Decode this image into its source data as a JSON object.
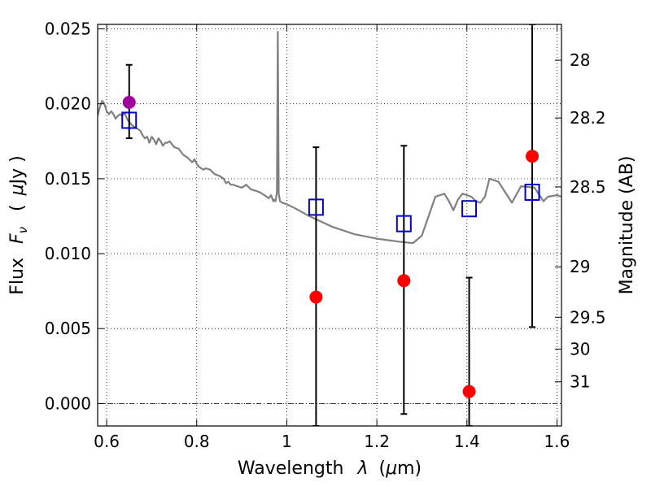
{
  "chart_data": {
    "type": "scatter",
    "xlabel_text": "Wavelength",
    "xlabel_symbol": "λ",
    "xlabel_unit_open": "(",
    "xlabel_unit_mu": "μ",
    "xlabel_unit_rest": "m)",
    "ylabel_text": "Flux",
    "ylabel_symbol": "F",
    "ylabel_sub": "ν",
    "ylabel_unit_open": "(",
    "ylabel_unit_mu": "μ",
    "ylabel_unit_rest": "Jy )",
    "y2label": "Magnitude (AB)",
    "xlim": [
      0.58,
      1.61
    ],
    "ylim": [
      -0.0015,
      0.0253
    ],
    "grid": true,
    "x_ticks": [
      {
        "v": 0.6,
        "label": "0.6"
      },
      {
        "v": 0.8,
        "label": "0.8"
      },
      {
        "v": 1.0,
        "label": "1"
      },
      {
        "v": 1.2,
        "label": "1.2"
      },
      {
        "v": 1.4,
        "label": "1.4"
      },
      {
        "v": 1.6,
        "label": "1.6"
      }
    ],
    "y_ticks": [
      {
        "v": 0.0,
        "label": "0.000"
      },
      {
        "v": 0.005,
        "label": "0.005"
      },
      {
        "v": 0.01,
        "label": "0.010"
      },
      {
        "v": 0.015,
        "label": "0.015"
      },
      {
        "v": 0.02,
        "label": "0.020"
      },
      {
        "v": 0.025,
        "label": "0.025"
      }
    ],
    "mag_ticks": [
      {
        "mag": 28,
        "label": "28"
      },
      {
        "mag": 28.2,
        "label": "28.2"
      },
      {
        "mag": 28.5,
        "label": "28.5"
      },
      {
        "mag": 29,
        "label": "29"
      },
      {
        "mag": 29.5,
        "label": "29.5"
      },
      {
        "mag": 30,
        "label": "30"
      },
      {
        "mag": 31,
        "label": "31"
      }
    ],
    "zero_line_y": 0.0,
    "model_spectrum": {
      "color": "#808080",
      "x": [
        0.58,
        0.585,
        0.59,
        0.595,
        0.6,
        0.605,
        0.61,
        0.615,
        0.62,
        0.625,
        0.63,
        0.635,
        0.64,
        0.645,
        0.65,
        0.655,
        0.66,
        0.665,
        0.67,
        0.675,
        0.68,
        0.685,
        0.69,
        0.695,
        0.7,
        0.705,
        0.71,
        0.715,
        0.72,
        0.725,
        0.73,
        0.735,
        0.74,
        0.75,
        0.76,
        0.77,
        0.78,
        0.79,
        0.795,
        0.8,
        0.805,
        0.81,
        0.815,
        0.82,
        0.83,
        0.84,
        0.85,
        0.86,
        0.865,
        0.87,
        0.875,
        0.88,
        0.89,
        0.9,
        0.91,
        0.92,
        0.93,
        0.94,
        0.95,
        0.96,
        0.965,
        0.97,
        0.972,
        0.975,
        0.978,
        0.98,
        0.982,
        0.985,
        0.99,
        1.0,
        1.02,
        1.05,
        1.1,
        1.15,
        1.2,
        1.25,
        1.28,
        1.3,
        1.33,
        1.35,
        1.36,
        1.37,
        1.38,
        1.39,
        1.4,
        1.41,
        1.42,
        1.43,
        1.44,
        1.45,
        1.47,
        1.5,
        1.52,
        1.55,
        1.57,
        1.58,
        1.6,
        1.61
      ],
      "y": [
        0.0192,
        0.0198,
        0.0202,
        0.02,
        0.0195,
        0.0193,
        0.0195,
        0.0193,
        0.019,
        0.0192,
        0.0193,
        0.0192,
        0.0194,
        0.019,
        0.0188,
        0.0186,
        0.0185,
        0.0184,
        0.0183,
        0.0182,
        0.0179,
        0.0177,
        0.0178,
        0.0174,
        0.0178,
        0.0176,
        0.0173,
        0.0177,
        0.0175,
        0.0172,
        0.0174,
        0.0174,
        0.0175,
        0.0171,
        0.017,
        0.0166,
        0.0164,
        0.0161,
        0.0163,
        0.016,
        0.0158,
        0.0157,
        0.0156,
        0.0157,
        0.0156,
        0.0153,
        0.0152,
        0.015,
        0.0147,
        0.0148,
        0.0146,
        0.0146,
        0.0145,
        0.0144,
        0.0146,
        0.0143,
        0.0142,
        0.0141,
        0.0139,
        0.0137,
        0.0139,
        0.0135,
        0.0136,
        0.0135,
        0.0141,
        0.0248,
        0.014,
        0.0135,
        0.0134,
        0.0133,
        0.013,
        0.0125,
        0.0118,
        0.0113,
        0.011,
        0.0108,
        0.0107,
        0.0112,
        0.0138,
        0.014,
        0.0135,
        0.0129,
        0.0136,
        0.014,
        0.0139,
        0.0138,
        0.0135,
        0.0134,
        0.0138,
        0.015,
        0.0148,
        0.0134,
        0.0145,
        0.0144,
        0.0135,
        0.0138,
        0.0139,
        0.0138
      ]
    },
    "model_bands": {
      "color": "#0000cc",
      "x": [
        0.65,
        1.065,
        1.26,
        1.405,
        1.545
      ],
      "y": [
        0.0189,
        0.0131,
        0.012,
        0.013,
        0.0141
      ]
    },
    "observed": {
      "color": "#ff0000",
      "x": [
        0.65,
        1.065,
        1.26,
        1.405,
        1.545
      ],
      "y": [
        0.0201,
        0.0071,
        0.0082,
        0.0008,
        0.0165
      ],
      "yerr_low": [
        0.0177,
        -0.0015,
        -0.0007,
        -0.0015,
        0.0051
      ],
      "yerr_high": [
        0.0226,
        0.0171,
        0.0172,
        0.0084,
        0.0253
      ],
      "point_colors": [
        "#a000a0",
        "#ff0000",
        "#ff0000",
        "#ff0000",
        "#ff0000"
      ]
    }
  }
}
